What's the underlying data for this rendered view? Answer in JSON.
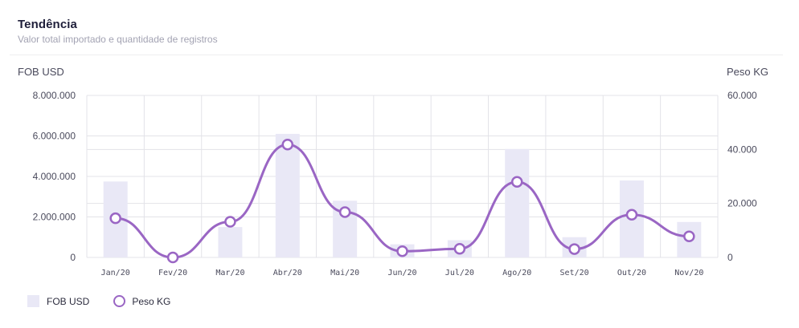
{
  "header": {
    "title": "Tendência",
    "subtitle": "Valor total importado e quantidade de registros"
  },
  "colors": {
    "bar": "#e9e8f6",
    "line": "#9a66c4",
    "grid": "#e3e3e8"
  },
  "chart_data": {
    "type": "bar",
    "categories": [
      "Jan/20",
      "Fev/20",
      "Mar/20",
      "Abr/20",
      "Mai/20",
      "Jun/20",
      "Jul/20",
      "Ago/20",
      "Set/20",
      "Out/20",
      "Nov/20"
    ],
    "series": [
      {
        "name": "FOB USD",
        "type": "bar",
        "axis": "left",
        "values": [
          3750000,
          0,
          1500000,
          6100000,
          2800000,
          650000,
          850000,
          5350000,
          1000000,
          3800000,
          1750000
        ]
      },
      {
        "name": "Peso KG",
        "type": "line",
        "axis": "right",
        "values": [
          14500,
          0,
          13200,
          41800,
          16800,
          2300,
          3200,
          28000,
          3100,
          15800,
          7800
        ]
      }
    ],
    "ylabel_left": "FOB USD",
    "ylabel_right": "Peso KG",
    "ylim_left": [
      0,
      8000000
    ],
    "ylim_right": [
      0,
      60000
    ],
    "yticks_left": [
      "0",
      "2.000.000",
      "4.000.000",
      "6.000.000",
      "8.000.000"
    ],
    "yticks_right": [
      "0",
      "20.000",
      "40.000",
      "60.000"
    ],
    "grid": true,
    "legend_position": "bottom-left"
  }
}
